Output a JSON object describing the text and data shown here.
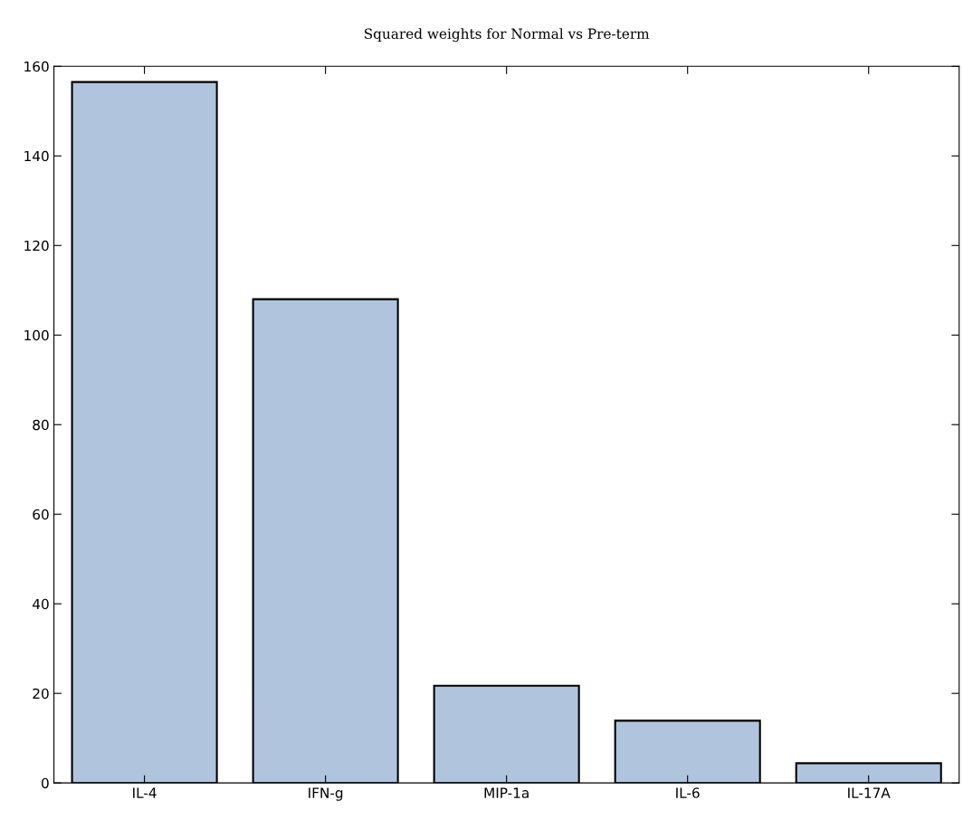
{
  "chart_data": {
    "type": "bar",
    "title": "Squared weights for Normal vs Pre-term",
    "categories": [
      "IL-4",
      "IFN-g",
      "MIP-1a",
      "IL-6",
      "IL-17A"
    ],
    "values": [
      156.5,
      108,
      21.7,
      13.9,
      4.4
    ],
    "color": "#b0c4de",
    "ylim": [
      0,
      160
    ],
    "yticks": [
      0,
      20,
      40,
      60,
      80,
      100,
      120,
      140,
      160
    ],
    "grid": false
  }
}
